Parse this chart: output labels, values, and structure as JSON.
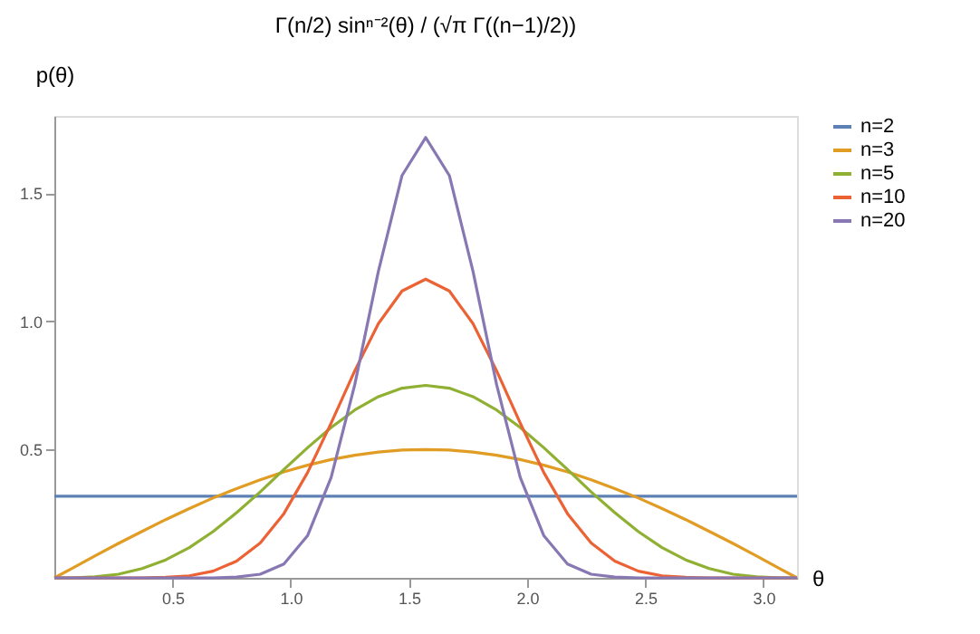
{
  "chart_data": {
    "type": "line",
    "title": "Γ(n/2) sinⁿ⁻²(θ) / (√π Γ((n−1)/2))",
    "xlabel": "θ",
    "ylabel": "p(θ)",
    "x": [
      0,
      0.071,
      0.171,
      0.271,
      0.371,
      0.471,
      0.571,
      0.671,
      0.771,
      0.871,
      0.971,
      1.071,
      1.171,
      1.271,
      1.371,
      1.471,
      1.571,
      1.671,
      1.771,
      1.871,
      1.971,
      2.071,
      2.171,
      2.271,
      2.371,
      2.471,
      2.571,
      2.671,
      2.771,
      2.871,
      2.971,
      3.071,
      3.142
    ],
    "series": [
      {
        "name": "n=2",
        "color": "#5e81b5",
        "values": [
          0.318,
          0.318,
          0.318,
          0.318,
          0.318,
          0.318,
          0.318,
          0.318,
          0.318,
          0.318,
          0.318,
          0.318,
          0.318,
          0.318,
          0.318,
          0.318,
          0.318,
          0.318,
          0.318,
          0.318,
          0.318,
          0.318,
          0.318,
          0.318,
          0.318,
          0.318,
          0.318,
          0.318,
          0.318,
          0.318,
          0.318,
          0.318,
          0.318
        ]
      },
      {
        "name": "n=3",
        "color": "#e19c24",
        "values": [
          0,
          0.035,
          0.085,
          0.134,
          0.181,
          0.227,
          0.27,
          0.311,
          0.348,
          0.382,
          0.413,
          0.439,
          0.461,
          0.478,
          0.49,
          0.498,
          0.5,
          0.498,
          0.49,
          0.478,
          0.461,
          0.439,
          0.413,
          0.382,
          0.348,
          0.311,
          0.27,
          0.227,
          0.181,
          0.134,
          0.085,
          0.035,
          0
        ]
      },
      {
        "name": "n=5",
        "color": "#8fb032",
        "values": [
          0,
          0,
          0.004,
          0.014,
          0.036,
          0.07,
          0.118,
          0.18,
          0.254,
          0.335,
          0.422,
          0.507,
          0.586,
          0.654,
          0.706,
          0.739,
          0.75,
          0.739,
          0.706,
          0.654,
          0.586,
          0.507,
          0.422,
          0.335,
          0.254,
          0.18,
          0.118,
          0.07,
          0.036,
          0.014,
          0.004,
          0,
          0
        ]
      },
      {
        "name": "n=10",
        "color": "#eb6235",
        "values": [
          0,
          0,
          0,
          0,
          0,
          0.002,
          0.008,
          0.026,
          0.065,
          0.136,
          0.25,
          0.41,
          0.603,
          0.807,
          0.991,
          1.118,
          1.164,
          1.118,
          0.991,
          0.807,
          0.603,
          0.41,
          0.25,
          0.136,
          0.065,
          0.026,
          0.008,
          0.002,
          0,
          0,
          0,
          0,
          0
        ]
      },
      {
        "name": "n=20",
        "color": "#8778b3",
        "values": [
          0,
          0,
          0,
          0,
          0,
          0,
          0,
          0,
          0.003,
          0.014,
          0.054,
          0.164,
          0.391,
          0.753,
          1.195,
          1.568,
          1.716,
          1.568,
          1.195,
          0.753,
          0.391,
          0.164,
          0.054,
          0.014,
          0.003,
          0,
          0,
          0,
          0,
          0,
          0,
          0,
          0
        ]
      }
    ],
    "xlim": [
      0,
      3.142
    ],
    "ylim": [
      0,
      1.8
    ],
    "xticks": [
      0.5,
      {
        "value": 1,
        "label": "1.0"
      },
      1.5,
      {
        "value": 2,
        "label": "2.0"
      },
      2.5,
      {
        "value": 3,
        "label": "3.0"
      }
    ],
    "yticks": [
      0.5,
      {
        "value": 1,
        "label": "1.0"
      },
      1.5
    ],
    "grid": false,
    "legend": "right",
    "line_style": "solid",
    "marker": "none"
  }
}
